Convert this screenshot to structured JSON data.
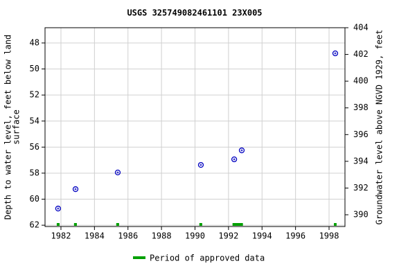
{
  "chart_data": {
    "type": "scatter",
    "title": "USGS 325749082461101 23X005",
    "ylabel_lines": [
      "Depth to water level, feet below land",
      "surface"
    ],
    "y2label": "Groundwater level above NGVD 1929, feet",
    "x": [
      1981.83,
      1982.87,
      1985.39,
      1990.35,
      1992.34,
      1992.79,
      1998.37
    ],
    "series": [
      {
        "name": "Depth to water level",
        "color": "#0000c0",
        "values": [
          60.72,
          59.23,
          57.95,
          57.37,
          56.94,
          56.25,
          48.8
        ]
      }
    ],
    "xlim": [
      1981.05,
      1998.95
    ],
    "xticks": [
      1982,
      1984,
      1986,
      1988,
      1990,
      1992,
      1994,
      1996,
      1998
    ],
    "ylim": [
      46.83,
      62.1
    ],
    "yticks": [
      48,
      50,
      52,
      54,
      56,
      58,
      60,
      62
    ],
    "y_inverted": true,
    "y2lim": [
      389.12,
      404
    ],
    "y2ticks": [
      390,
      392,
      394,
      396,
      398,
      400,
      402,
      404
    ],
    "approved_periods": {
      "name": "Period of approved data",
      "color": "#00a000",
      "ranges": [
        [
          1981.75,
          1981.92
        ],
        [
          1982.78,
          1982.95
        ],
        [
          1985.3,
          1985.47
        ],
        [
          1990.26,
          1990.43
        ],
        [
          1992.24,
          1992.86
        ],
        [
          1998.29,
          1998.45
        ]
      ]
    },
    "grid": true
  }
}
